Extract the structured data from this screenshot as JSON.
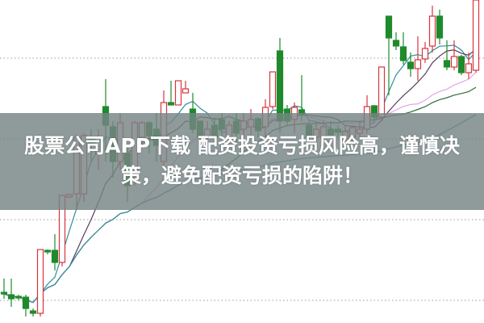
{
  "headline": "股票公司APP下载 配资投资亏损风险高，谨慎决策，避免配资亏损的陷阱！",
  "colors": {
    "up": "#d8343c",
    "down": "#1f8a2c",
    "grid": "#9a9a9a",
    "banner": "#768484",
    "ma": [
      "#2e8f9c",
      "#5a3c5e",
      "#e3a6e6",
      "#2f6b3b",
      "#3b8ea6"
    ]
  },
  "chart_data": {
    "type": "candlestick",
    "ylim": [
      0,
      40
    ],
    "moving_average_periods": [
      5,
      10,
      20,
      30,
      60
    ],
    "grid": "horizontal-dotted",
    "candles": [
      [
        3.8,
        3.6,
        5.5,
        3.0
      ],
      [
        3.5,
        3.0,
        5.5,
        2.0
      ],
      [
        3.3,
        3.1,
        3.5,
        2.8
      ],
      [
        3.2,
        1.8,
        3.5,
        0.8
      ],
      [
        1.5,
        1.2,
        1.8,
        0.8
      ],
      [
        1.2,
        9.1,
        9.1,
        0.8
      ],
      [
        9.0,
        8.8,
        9.1,
        8.5
      ],
      [
        9.0,
        7.5,
        11.0,
        6.5
      ],
      [
        7.5,
        15.8,
        15.8,
        7.0
      ],
      [
        15.6,
        15.9,
        16.0,
        15.5
      ],
      [
        16.0,
        23.0,
        23.3,
        14.0
      ],
      [
        16.0,
        23.2,
        23.5,
        15.0
      ],
      [
        23.0,
        22.0,
        24.0,
        20.0
      ],
      [
        21.0,
        23.0,
        24.0,
        19.0
      ],
      [
        26.8,
        24.5,
        30.2,
        20.0
      ],
      [
        24.3,
        20.0,
        25.0,
        18.0
      ],
      [
        20.0,
        24.8,
        26.0,
        19.0
      ],
      [
        21.0,
        17.0,
        22.0,
        15.0
      ],
      [
        18.0,
        24.8,
        25.0,
        17.0
      ],
      [
        23.0,
        24.8,
        25.0,
        22.0
      ],
      [
        24.8,
        23.2,
        25.0,
        21.0
      ],
      [
        24.0,
        22.0,
        26.0,
        20.0
      ],
      [
        20.0,
        27.3,
        28.8,
        19.0
      ],
      [
        27.3,
        27.0,
        30.0,
        27.0
      ],
      [
        27.0,
        30.0,
        30.0,
        27.0
      ],
      [
        28.5,
        29.0,
        30.0,
        28.5
      ],
      [
        26.5,
        24.0,
        28.5,
        23.5
      ],
      [
        25.0,
        23.0,
        25.0,
        21.0
      ],
      [
        23.0,
        24.0,
        25.0,
        22.0
      ],
      [
        24.5,
        23.0,
        25.5,
        22.0
      ],
      [
        25.2,
        24.0,
        26.0,
        23.0
      ],
      [
        23.0,
        24.5,
        25.0,
        22.0
      ],
      [
        25.0,
        23.5,
        26.0,
        22.0
      ],
      [
        24.0,
        25.0,
        26.0,
        23.0
      ],
      [
        24.3,
        25.2,
        26.5,
        23.3
      ],
      [
        25.3,
        23.8,
        25.5,
        23.0
      ],
      [
        24.3,
        26.7,
        27.7,
        23.0
      ],
      [
        26.8,
        31.1,
        31.1,
        26.5
      ],
      [
        33.7,
        25.0,
        35.3,
        23.5
      ],
      [
        26.5,
        25.0,
        27.0,
        24.5
      ],
      [
        25.2,
        26.7,
        27.3,
        23.5
      ],
      [
        26.4,
        25.8,
        30.7,
        25.0
      ],
      [
        24.5,
        23.0,
        25.0,
        22.5
      ],
      [
        23.0,
        24.0,
        25.0,
        22.0
      ],
      [
        23.0,
        24.3,
        25.0,
        22.0
      ],
      [
        24.0,
        23.3,
        25.0,
        22.5
      ],
      [
        24.0,
        23.6,
        24.5,
        23.0
      ],
      [
        22.5,
        23.7,
        24.5,
        22.0
      ],
      [
        23.0,
        24.2,
        24.5,
        22.5
      ],
      [
        23.5,
        24.0,
        25.0,
        23.0
      ],
      [
        24.0,
        26.8,
        28.2,
        23.5
      ],
      [
        26.9,
        25.5,
        27.0,
        25.0
      ],
      [
        25.5,
        31.7,
        31.7,
        25.0
      ],
      [
        38.0,
        35.3,
        38.0,
        28.2
      ],
      [
        35.0,
        34.3,
        36.0,
        33.8
      ],
      [
        34.2,
        32.5,
        36.0,
        32.0
      ],
      [
        32.3,
        31.5,
        33.5,
        30.5
      ],
      [
        31.5,
        32.6,
        35.5,
        30.0
      ],
      [
        32.7,
        34.0,
        34.8,
        32.2
      ],
      [
        34.3,
        38.0,
        39.3,
        33.5
      ],
      [
        38.0,
        35.3,
        38.8,
        34.5
      ],
      [
        32.5,
        31.7,
        35.0,
        31.3
      ],
      [
        31.7,
        33.0,
        35.0,
        31.3
      ],
      [
        33.0,
        31.0,
        33.2,
        30.7
      ],
      [
        31.0,
        32.1,
        33.5,
        30.2
      ],
      [
        31.3,
        40.0,
        40.0,
        31.0
      ]
    ]
  }
}
